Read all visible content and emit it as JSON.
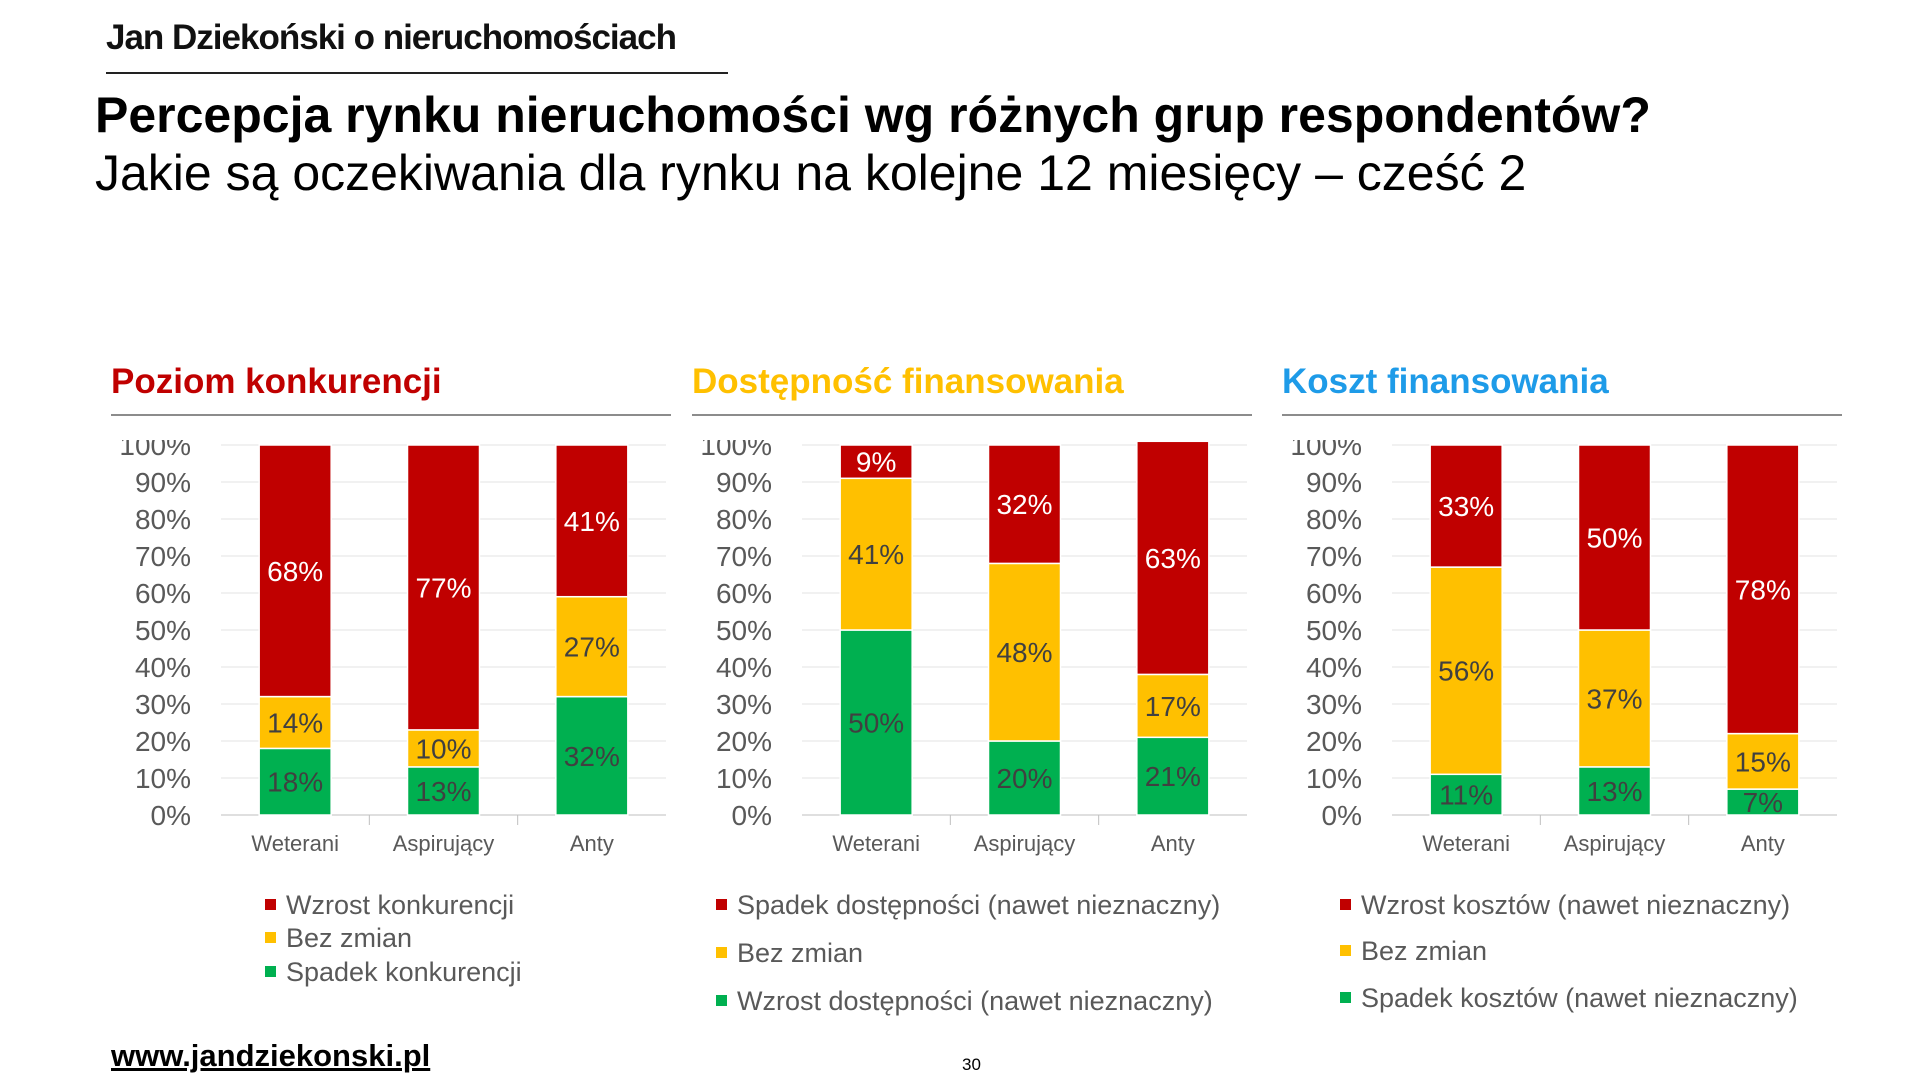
{
  "header": {
    "brand": "Jan Dziekoński o nieruchomościach",
    "title": "Percepcja rynku nieruchomości wg różnych grup respondentów?",
    "subtitle": "Jakie są oczekiwania dla rynku na kolejne 12 miesięcy – cześć 2"
  },
  "colors": {
    "red": "#C00000",
    "yellow": "#FFC000",
    "green": "#00B050",
    "panel1_title": "#C00000",
    "panel2_title": "#FFC000",
    "panel3_title": "#1E9BE8"
  },
  "chart_data": [
    {
      "type": "bar",
      "stacked": true,
      "title": "Poziom konkurencji",
      "categories": [
        "Weterani",
        "Aspirujący",
        "Anty"
      ],
      "yticks": [
        "0%",
        "10%",
        "20%",
        "30%",
        "40%",
        "50%",
        "60%",
        "70%",
        "80%",
        "90%",
        "100%"
      ],
      "ylim": [
        0,
        100
      ],
      "series": [
        {
          "name": "Spadek konkurencji",
          "color": "green",
          "values": [
            18,
            13,
            32
          ],
          "labels": [
            "18%",
            "13%",
            "32%"
          ]
        },
        {
          "name": "Bez zmian",
          "color": "yellow",
          "values": [
            14,
            10,
            27
          ],
          "labels": [
            "14%",
            "10%",
            "27%"
          ]
        },
        {
          "name": "Wzrost konkurencji",
          "color": "red",
          "values": [
            68,
            77,
            41
          ],
          "labels": [
            "68%",
            "77%",
            "41%"
          ]
        }
      ],
      "legend": [
        "Wzrost konkurencji",
        "Bez zmian",
        "Spadek konkurencji"
      ]
    },
    {
      "type": "bar",
      "stacked": true,
      "title": "Dostępność finansowania",
      "categories": [
        "Weterani",
        "Aspirujący",
        "Anty"
      ],
      "yticks": [
        "0%",
        "10%",
        "20%",
        "30%",
        "40%",
        "50%",
        "60%",
        "70%",
        "80%",
        "90%",
        "100%"
      ],
      "ylim": [
        0,
        100
      ],
      "series": [
        {
          "name": "Wzrost dostępności (nawet nieznaczny)",
          "color": "green",
          "values": [
            50,
            20,
            21
          ],
          "labels": [
            "50%",
            "20%",
            "21%"
          ]
        },
        {
          "name": "Bez zmian",
          "color": "yellow",
          "values": [
            41,
            48,
            17
          ],
          "labels": [
            "41%",
            "48%",
            "17%"
          ]
        },
        {
          "name": "Spadek dostępności (nawet nieznaczny)",
          "color": "red",
          "values": [
            9,
            32,
            63
          ],
          "labels": [
            "9%",
            "32%",
            "63%"
          ]
        }
      ],
      "legend": [
        "Spadek dostępności (nawet nieznaczny)",
        "Bez zmian",
        "Wzrost dostępności (nawet nieznaczny)"
      ]
    },
    {
      "type": "bar",
      "stacked": true,
      "title": "Koszt finansowania",
      "categories": [
        "Weterani",
        "Aspirujący",
        "Anty"
      ],
      "yticks": [
        "0%",
        "10%",
        "20%",
        "30%",
        "40%",
        "50%",
        "60%",
        "70%",
        "80%",
        "90%",
        "100%"
      ],
      "ylim": [
        0,
        100
      ],
      "series": [
        {
          "name": "Spadek kosztów (nawet nieznaczny)",
          "color": "green",
          "values": [
            11,
            13,
            7
          ],
          "labels": [
            "11%",
            "13%",
            "7%"
          ]
        },
        {
          "name": "Bez zmian",
          "color": "yellow",
          "values": [
            56,
            37,
            15
          ],
          "labels": [
            "56%",
            "37%",
            "15%"
          ]
        },
        {
          "name": "Wzrost kosztów (nawet nieznaczny)",
          "color": "red",
          "values": [
            33,
            50,
            78
          ],
          "labels": [
            "33%",
            "50%",
            "78%"
          ]
        }
      ],
      "legend": [
        "Wzrost kosztów (nawet nieznaczny)",
        "Bez zmian",
        "Spadek kosztów (nawet nieznaczny)"
      ]
    }
  ],
  "footer": {
    "url": "www.jandziekonski.pl",
    "page_number": "30"
  }
}
